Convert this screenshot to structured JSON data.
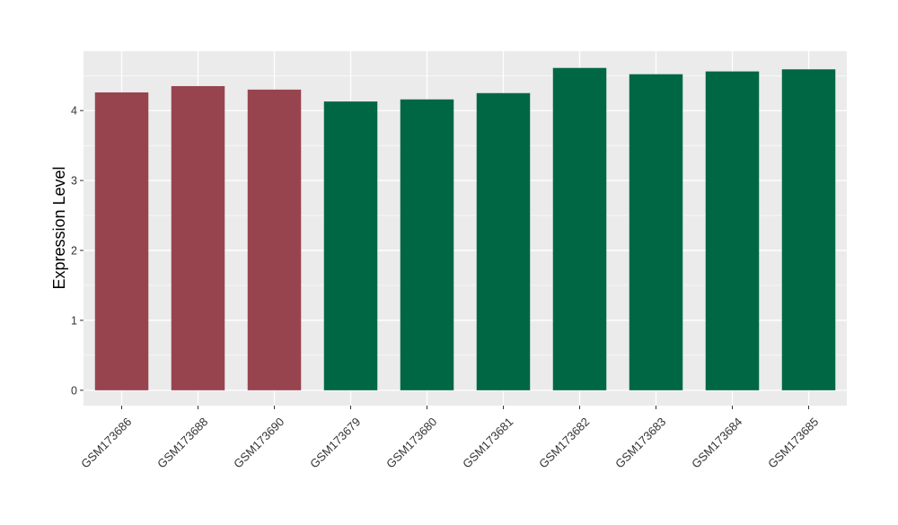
{
  "chart_data": {
    "type": "bar",
    "title": "",
    "xlabel": "",
    "ylabel": "Expression Level",
    "ylim": [
      -0.22,
      4.85
    ],
    "yticks": [
      0,
      1,
      2,
      3,
      4
    ],
    "grid": true,
    "legend": "none",
    "categories": [
      "GSM173686",
      "GSM173688",
      "GSM173690",
      "GSM173679",
      "GSM173680",
      "GSM173681",
      "GSM173682",
      "GSM173683",
      "GSM173684",
      "GSM173685"
    ],
    "values": [
      4.26,
      4.35,
      4.3,
      4.13,
      4.16,
      4.25,
      4.61,
      4.52,
      4.56,
      4.59
    ],
    "group": [
      "A",
      "A",
      "A",
      "B",
      "B",
      "B",
      "B",
      "B",
      "B",
      "B"
    ],
    "colors": {
      "A": "#98444f",
      "B": "#006744",
      "panel": "#ebebeb",
      "grid": "#ffffff",
      "text": "#1a1a1a",
      "tick_text": "#333333"
    }
  }
}
